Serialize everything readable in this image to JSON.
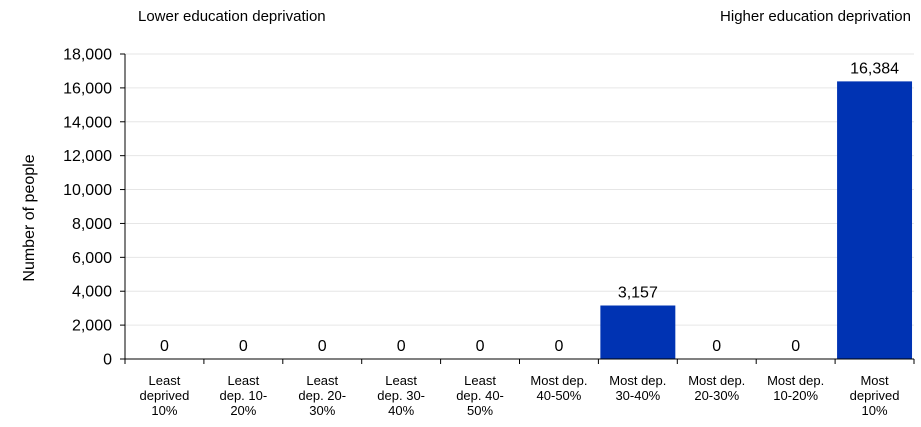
{
  "annotations": {
    "left": "Lower education deprivation",
    "right": "Higher education deprivation"
  },
  "chart_data": {
    "type": "bar",
    "ylabel": "Number of people",
    "xlabel": "",
    "ylim": [
      0,
      18000
    ],
    "yticks": [
      "0",
      "2,000",
      "4,000",
      "6,000",
      "8,000",
      "10,000",
      "12,000",
      "14,000",
      "16,000",
      "18,000"
    ],
    "grid": true,
    "bar_color": "#0033b3",
    "categories": [
      [
        "Least",
        "deprived",
        "10%"
      ],
      [
        "Least",
        "dep. 10-",
        "20%"
      ],
      [
        "Least",
        "dep. 20-",
        "30%"
      ],
      [
        "Least",
        "dep. 30-",
        "40%"
      ],
      [
        "Least",
        "dep. 40-",
        "50%"
      ],
      [
        "Most dep.",
        "40-50%"
      ],
      [
        "Most dep.",
        "30-40%"
      ],
      [
        "Most dep.",
        "20-30%"
      ],
      [
        "Most dep.",
        "10-20%"
      ],
      [
        "Most",
        "deprived",
        "10%"
      ]
    ],
    "values": [
      0,
      0,
      0,
      0,
      0,
      0,
      3157,
      0,
      0,
      16384
    ],
    "data_labels": [
      "0",
      "0",
      "0",
      "0",
      "0",
      "0",
      "3,157",
      "0",
      "0",
      "16,384"
    ]
  }
}
